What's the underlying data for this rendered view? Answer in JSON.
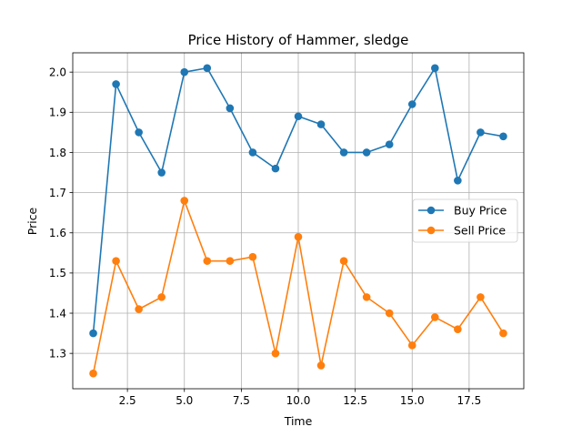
{
  "chart_data": {
    "type": "line",
    "title": "Price History of Hammer, sledge",
    "xlabel": "Time",
    "ylabel": "Price",
    "xlim": [
      0.1,
      19.9
    ],
    "ylim": [
      1.212,
      2.048
    ],
    "x_ticks": [
      2.5,
      5.0,
      7.5,
      10.0,
      12.5,
      15.0,
      17.5
    ],
    "x_tick_labels": [
      "2.5",
      "5.0",
      "7.5",
      "10.0",
      "12.5",
      "15.0",
      "17.5"
    ],
    "y_ticks": [
      1.3,
      1.4,
      1.5,
      1.6,
      1.7,
      1.8,
      1.9,
      2.0
    ],
    "y_tick_labels": [
      "1.3",
      "1.4",
      "1.5",
      "1.6",
      "1.7",
      "1.8",
      "1.9",
      "2.0"
    ],
    "grid": true,
    "legend_position": "center-right",
    "x": [
      1,
      2,
      3,
      4,
      5,
      6,
      7,
      8,
      9,
      10,
      11,
      12,
      13,
      14,
      15,
      16,
      17,
      18,
      19
    ],
    "series": [
      {
        "name": "Buy Price",
        "color": "#1f77b4",
        "values": [
          1.35,
          1.97,
          1.85,
          1.75,
          2.0,
          2.01,
          1.91,
          1.8,
          1.76,
          1.89,
          1.87,
          1.8,
          1.8,
          1.82,
          1.92,
          2.01,
          1.73,
          1.85,
          1.84
        ]
      },
      {
        "name": "Sell Price",
        "color": "#ff7f0e",
        "values": [
          1.25,
          1.53,
          1.41,
          1.44,
          1.68,
          1.53,
          1.53,
          1.54,
          1.3,
          1.59,
          1.27,
          1.53,
          1.44,
          1.4,
          1.32,
          1.39,
          1.36,
          1.44,
          1.35
        ]
      }
    ]
  }
}
